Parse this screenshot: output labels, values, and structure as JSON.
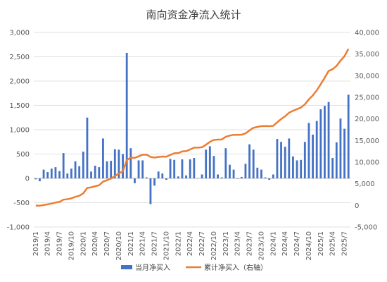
{
  "chart_data": {
    "type": "bar",
    "title": "南向资金净流入统计",
    "legend_position": "bottom",
    "colors": {
      "bar": "#4472C4",
      "line": "#ED7D31",
      "grid": "#D9D9D9",
      "axis": "#BFBFBF"
    },
    "left_axis": {
      "range": [
        -1000,
        3000
      ],
      "ticks": [
        "-1,000",
        "-500",
        "0",
        "500",
        "1,000",
        "1,500",
        "2,000",
        "2,500",
        "3,000"
      ]
    },
    "right_axis": {
      "range": [
        -5000,
        40000
      ],
      "ticks": [
        "-5,000",
        "0",
        "5,000",
        "10,000",
        "15,000",
        "20,000",
        "25,000",
        "30,000",
        "35,000",
        "40,000"
      ]
    },
    "x_tick_labels": [
      "2019/1",
      "2019/4",
      "2019/7",
      "2019/10",
      "2020/1",
      "2020/4",
      "2020/7",
      "2020/10",
      "2021/1",
      "2021/4",
      "2021/7",
      "2021/10",
      "2022/1",
      "2022/4",
      "2022/7",
      "2022/10",
      "2023/1",
      "2023/4",
      "2023/7",
      "2023/10",
      "2024/1",
      "2024/4",
      "2024/7",
      "2024/10",
      "2025/1",
      "2025/4",
      "2025/7"
    ],
    "categories": [
      "2019/1",
      "2019/2",
      "2019/3",
      "2019/4",
      "2019/5",
      "2019/6",
      "2019/7",
      "2019/8",
      "2019/9",
      "2019/10",
      "2019/11",
      "2019/12",
      "2020/1",
      "2020/2",
      "2020/3",
      "2020/4",
      "2020/5",
      "2020/6",
      "2020/7",
      "2020/8",
      "2020/9",
      "2020/10",
      "2020/11",
      "2020/12",
      "2021/1",
      "2021/2",
      "2021/3",
      "2021/4",
      "2021/5",
      "2021/6",
      "2021/7",
      "2021/8",
      "2021/9",
      "2021/10",
      "2021/11",
      "2021/12",
      "2022/1",
      "2022/2",
      "2022/3",
      "2022/4",
      "2022/5",
      "2022/6",
      "2022/7",
      "2022/8",
      "2022/9",
      "2022/10",
      "2022/11",
      "2022/12",
      "2023/1",
      "2023/2",
      "2023/3",
      "2023/4",
      "2023/5",
      "2023/6",
      "2023/7",
      "2023/8",
      "2023/9",
      "2023/10",
      "2023/11",
      "2023/12",
      "2024/1",
      "2024/2",
      "2024/3",
      "2024/4",
      "2024/5",
      "2024/6",
      "2024/7",
      "2024/8",
      "2024/9",
      "2024/10",
      "2024/11",
      "2024/12",
      "2025/1",
      "2025/2",
      "2025/3",
      "2025/4",
      "2025/5",
      "2025/6",
      "2025/7",
      "2025/8"
    ],
    "series": [
      {
        "name": "当月净买入",
        "type": "bar",
        "axis": "left",
        "values": [
          -20,
          -60,
          180,
          130,
          200,
          230,
          150,
          520,
          100,
          200,
          350,
          250,
          550,
          1250,
          140,
          260,
          230,
          820,
          350,
          360,
          600,
          590,
          500,
          2580,
          620,
          -100,
          370,
          370,
          20,
          -530,
          -150,
          140,
          100,
          -30,
          400,
          380,
          40,
          390,
          60,
          390,
          420,
          5,
          80,
          590,
          660,
          460,
          80,
          20,
          620,
          280,
          180,
          -10,
          30,
          300,
          700,
          590,
          220,
          180,
          20,
          -30,
          80,
          810,
          750,
          650,
          820,
          450,
          370,
          380,
          750,
          1140,
          900,
          1180,
          1420,
          1490,
          1570,
          420,
          740,
          1230,
          1020,
          1720
        ]
      },
      {
        "name": "累计净买入（右轴）",
        "type": "line",
        "axis": "right",
        "values": [
          -20,
          -80,
          100,
          230,
          430,
          660,
          810,
          1330,
          1430,
          1630,
          1980,
          2230,
          2780,
          4030,
          4170,
          4430,
          4660,
          5480,
          5830,
          6190,
          6790,
          7380,
          7880,
          10460,
          11080,
          10980,
          11350,
          11720,
          11740,
          11210,
          11060,
          11200,
          11300,
          11270,
          11670,
          12050,
          12090,
          12480,
          12540,
          12930,
          13350,
          13355,
          13435,
          14025,
          14685,
          15145,
          15225,
          15245,
          15865,
          16145,
          16325,
          16315,
          16345,
          16645,
          17345,
          17935,
          18155,
          18335,
          18355,
          18325,
          18405,
          19215,
          19965,
          20615,
          21435,
          21885,
          22255,
          22635,
          23385,
          24525,
          25425,
          26605,
          28025,
          29515,
          31085,
          31505,
          32245,
          33475,
          34495,
          36215
        ]
      }
    ]
  }
}
